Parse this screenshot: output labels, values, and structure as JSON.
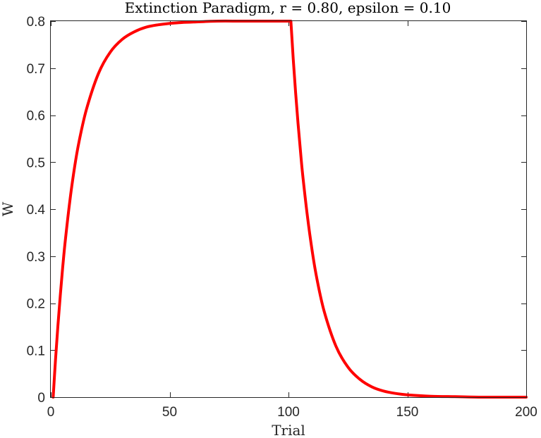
{
  "chart_data": {
    "type": "line",
    "title": "Extinction Paradigm, r = 0.80, epsilon = 0.10",
    "xlabel": "Trial",
    "ylabel": "W",
    "xlim": [
      0,
      200
    ],
    "ylim": [
      0,
      0.8
    ],
    "xticks": [
      0,
      50,
      100,
      150,
      200
    ],
    "xtick_labels": [
      "0",
      "50",
      "100",
      "150",
      "200"
    ],
    "yticks": [
      0,
      0.1,
      0.2,
      0.3,
      0.4,
      0.5,
      0.6,
      0.7,
      0.8
    ],
    "ytick_labels": [
      "0",
      "0.1",
      "0.2",
      "0.3",
      "0.4",
      "0.5",
      "0.6",
      "0.7",
      "0.8"
    ],
    "grid": false,
    "legend": "none",
    "series": [
      {
        "color": "#ff0000",
        "x": [
          1,
          2,
          3,
          4,
          5,
          6,
          8,
          10,
          12,
          15,
          20,
          25,
          30,
          35,
          40,
          45,
          50,
          55,
          60,
          70,
          80,
          90,
          100,
          101,
          102,
          103,
          104,
          105,
          106,
          108,
          110,
          112,
          115,
          120,
          125,
          130,
          135,
          140,
          145,
          150,
          160,
          170,
          180,
          190,
          200
        ],
        "y": [
          0,
          0.08,
          0.152,
          0.217,
          0.275,
          0.328,
          0.417,
          0.489,
          0.546,
          0.612,
          0.688,
          0.734,
          0.761,
          0.777,
          0.787,
          0.792,
          0.795,
          0.797,
          0.798,
          0.8,
          0.8,
          0.8,
          0.8,
          0.8,
          0.72,
          0.648,
          0.583,
          0.525,
          0.472,
          0.383,
          0.31,
          0.251,
          0.183,
          0.108,
          0.064,
          0.038,
          0.022,
          0.013,
          0.008,
          0.005,
          0.002,
          0.001,
          0,
          0,
          0
        ]
      }
    ]
  }
}
